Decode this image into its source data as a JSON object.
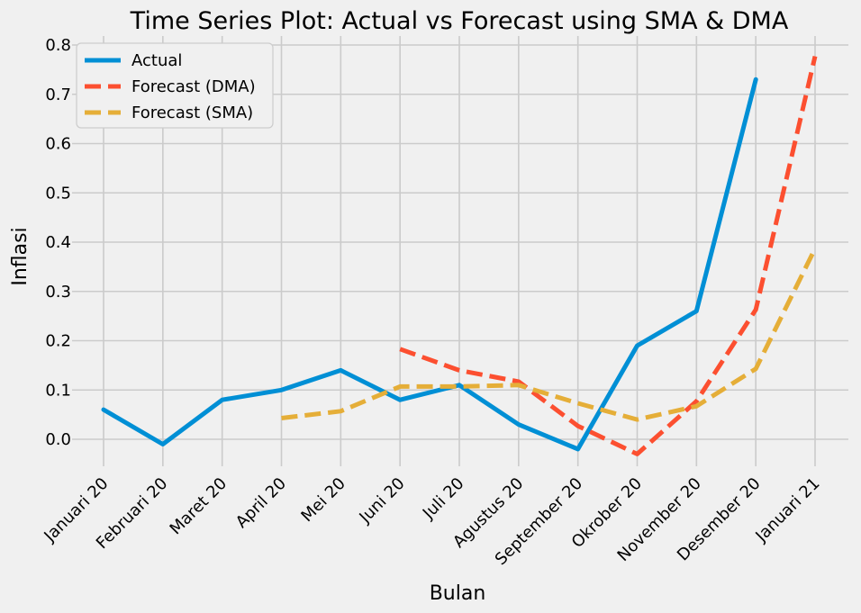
{
  "chart_data": {
    "type": "line",
    "title": "Time Series Plot: Actual vs Forecast using SMA & DMA",
    "xlabel": "Bulan",
    "ylabel": "Inflasi",
    "categories": [
      "Januari 20",
      "Februari 20",
      "Maret 20",
      "April 20",
      "Mei 20",
      "Juni 20",
      "Juli 20",
      "Agustus 20",
      "September 20",
      "Okrober 20",
      "November 20",
      "Desember 20",
      "Januari 21"
    ],
    "yticks": [
      "0.0",
      "0.1",
      "0.2",
      "0.3",
      "0.4",
      "0.5",
      "0.6",
      "0.7",
      "0.8"
    ],
    "ylim": [
      -0.07,
      0.82
    ],
    "grid": true,
    "legend_position": "top-left",
    "series": [
      {
        "name": "Actual",
        "style": "solid",
        "color": "#008fd5",
        "values": [
          0.06,
          -0.01,
          0.08,
          0.1,
          0.14,
          0.08,
          0.11,
          0.03,
          -0.02,
          0.19,
          0.26,
          0.73,
          null
        ]
      },
      {
        "name": "Forecast (DMA)",
        "style": "dashed",
        "color": "#fc4f30",
        "values": [
          null,
          null,
          null,
          null,
          null,
          0.183,
          0.14,
          0.117,
          0.027,
          -0.03,
          0.077,
          0.263,
          0.777
        ]
      },
      {
        "name": "Forecast (SMA)",
        "style": "dashed",
        "color": "#e5ae38",
        "values": [
          null,
          null,
          null,
          0.043,
          0.057,
          0.107,
          0.107,
          0.11,
          0.073,
          0.04,
          0.067,
          0.143,
          0.387
        ]
      }
    ]
  }
}
